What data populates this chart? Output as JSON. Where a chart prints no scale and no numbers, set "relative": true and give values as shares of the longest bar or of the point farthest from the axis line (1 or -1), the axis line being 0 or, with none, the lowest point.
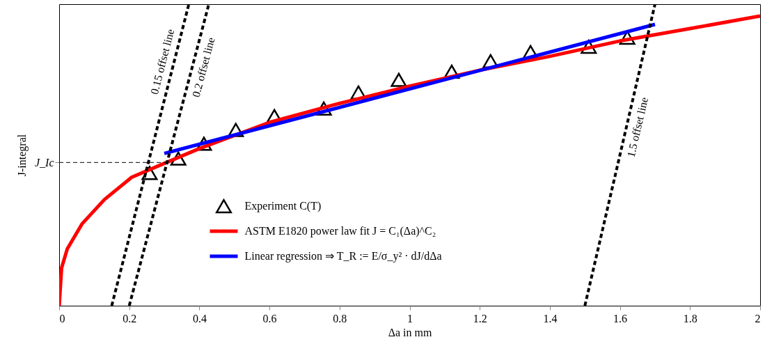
{
  "chart_data": {
    "type": "line",
    "relative": true,
    "xlabel": "Δa in mm",
    "ylabel": "J-integral",
    "xlim": [
      0,
      2
    ],
    "xticks": [
      0,
      0.2,
      0.4,
      0.6,
      0.8,
      1,
      1.2,
      1.4,
      1.6,
      1.8,
      2
    ],
    "grid": false,
    "legend": "bottom",
    "series": [
      {
        "name": "Experiment C(T)",
        "type": "scatter",
        "marker": "triangle",
        "color": "#000000",
        "x": [
          0.258,
          0.34,
          0.413,
          0.504,
          0.614,
          0.755,
          0.854,
          0.969,
          1.12,
          1.231,
          1.345,
          1.511,
          1.621
        ],
        "values": [
          0.44,
          0.488,
          0.537,
          0.583,
          0.629,
          0.654,
          0.707,
          0.749,
          0.776,
          0.811,
          0.841,
          0.859,
          0.889
        ]
      },
      {
        "name": "ASTM E1820 power law fit J = C₁(Δa)^C₂",
        "type": "line",
        "color": "#ff0000",
        "x": [
          0,
          0.007,
          0.023,
          0.065,
          0.129,
          0.207,
          0.3,
          0.4,
          0.6,
          0.8,
          1.0,
          1.2,
          1.4,
          1.6,
          1.8,
          2.0
        ],
        "values": [
          0,
          0.126,
          0.188,
          0.271,
          0.352,
          0.426,
          0.472,
          0.521,
          0.608,
          0.671,
          0.728,
          0.781,
          0.827,
          0.878,
          0.919,
          0.961
        ]
      },
      {
        "name": "Linear regression ⇒ T_R := E/σ_y² · dJ/dΔa",
        "type": "line",
        "color": "#0000ff",
        "x": [
          0.3,
          1.7
        ],
        "values": [
          0.505,
          0.933
        ]
      },
      {
        "name": "0.15 offset line",
        "type": "line",
        "color": "#000000",
        "line_style": "dashed",
        "x": [
          0.15,
          0.37
        ],
        "values": [
          0,
          1
        ]
      },
      {
        "name": "0.2 offset line",
        "type": "line",
        "color": "#000000",
        "line_style": "dashed",
        "x": [
          0.2,
          0.427
        ],
        "values": [
          0,
          1
        ]
      },
      {
        "name": "1.5 offset line",
        "type": "line",
        "color": "#000000",
        "line_style": "dashed",
        "x": [
          1.5,
          1.7
        ],
        "values": [
          0,
          1
        ]
      }
    ],
    "ref_lines": [
      {
        "axis": "y",
        "value": 0.475,
        "label": "J_Ic",
        "line_style": "dashed",
        "color": "#000000"
      }
    ]
  }
}
